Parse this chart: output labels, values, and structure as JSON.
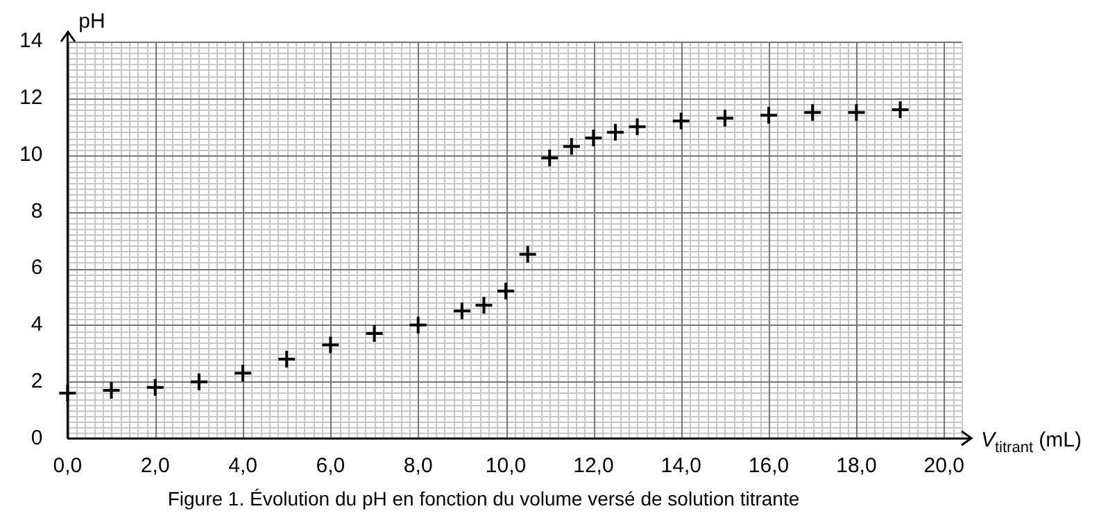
{
  "chart_data": {
    "type": "scatter",
    "title": "Figure 1. Évolution du pH en fonction du volume versé de solution titrante",
    "xlabel": "V$_{titrant}$ (mL)",
    "ylabel": "pH",
    "x": [
      0,
      1,
      2,
      3,
      4,
      5,
      6,
      7,
      8,
      9,
      9.5,
      10,
      10.5,
      11,
      11.5,
      12,
      12.5,
      13,
      14,
      15,
      16,
      17,
      18,
      19
    ],
    "values": [
      1.6,
      1.7,
      1.8,
      2.0,
      2.3,
      2.8,
      3.3,
      3.7,
      4.0,
      4.5,
      4.7,
      5.2,
      6.5,
      9.9,
      10.3,
      10.6,
      10.8,
      11.0,
      11.2,
      11.3,
      11.4,
      11.5,
      11.5,
      11.6
    ],
    "color": "#000000",
    "marker": "cross",
    "grid": true,
    "legend": false,
    "xlim": [
      0,
      20.4
    ],
    "ylim": [
      0,
      14
    ],
    "xticks": [
      {
        "value": 0,
        "label": "0,0"
      },
      {
        "value": 2,
        "label": "2,0"
      },
      {
        "value": 4,
        "label": "4,0"
      },
      {
        "value": 6,
        "label": "6,0"
      },
      {
        "value": 8,
        "label": "8,0"
      },
      {
        "value": 10,
        "label": "10,0"
      },
      {
        "value": 12,
        "label": "12,0"
      },
      {
        "value": 14,
        "label": "14,0"
      },
      {
        "value": 16,
        "label": "16,0"
      },
      {
        "value": 18,
        "label": "18,0"
      },
      {
        "value": 20,
        "label": "20,0"
      }
    ],
    "yticks": [
      0,
      2,
      4,
      6,
      8,
      10,
      12,
      14
    ]
  }
}
